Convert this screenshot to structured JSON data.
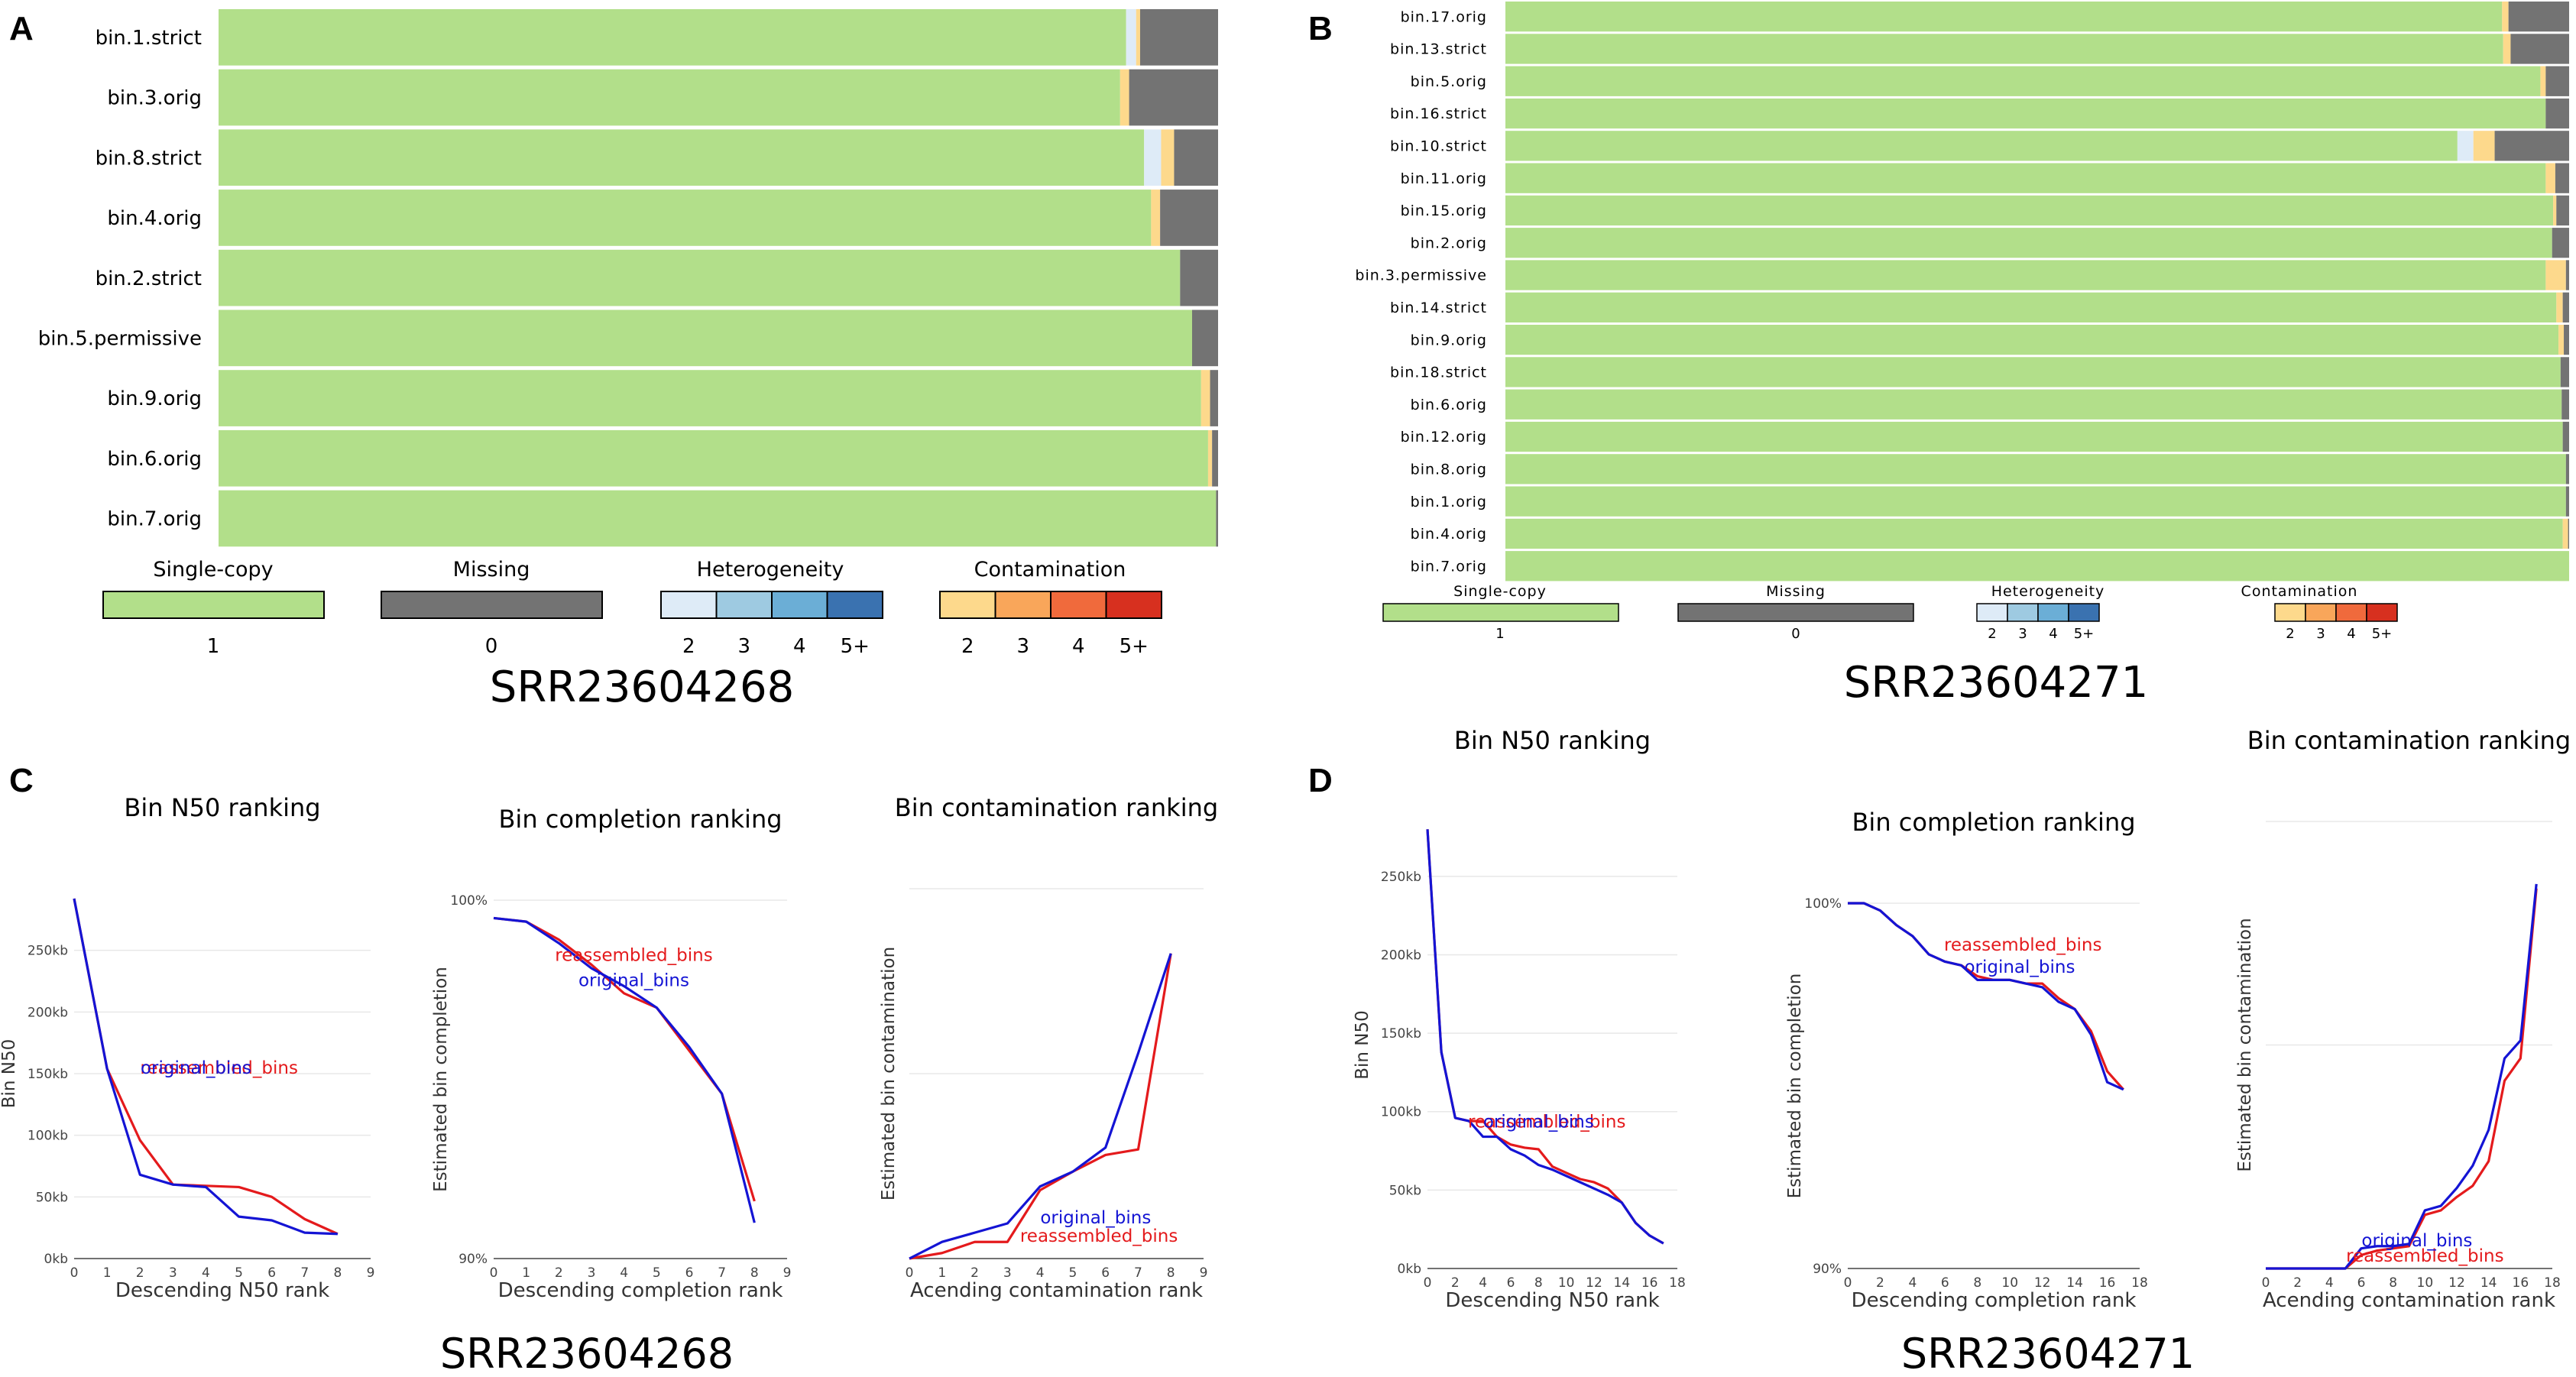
{
  "colors": {
    "single_copy": "#b2df8a",
    "missing": "#737373",
    "heterogeneity": [
      "#deebf7",
      "#9ecae1",
      "#6baed6",
      "#3a72b0"
    ],
    "contamination": [
      "#fdd98c",
      "#f9a65a",
      "#f06a3c",
      "#d7301f"
    ],
    "reassembled": "#e41a1c",
    "original": "#1414d4"
  },
  "legend": {
    "single_copy_title": "Single-copy",
    "single_copy_tick": "1",
    "missing_title": "Missing",
    "missing_tick": "0",
    "heterogeneity_title": "Heterogeneity",
    "heterogeneity_ticks": [
      "2",
      "3",
      "4",
      "5+"
    ],
    "contamination_title": "Contamination",
    "contamination_ticks": [
      "2",
      "3",
      "4",
      "5+"
    ]
  },
  "panels": {
    "A": {
      "letter": "A",
      "sample": "SRR23604268"
    },
    "B": {
      "letter": "B",
      "sample": "SRR23604271"
    },
    "C": {
      "letter": "C",
      "sample": "SRR23604268"
    },
    "D": {
      "letter": "D",
      "sample": "SRR23604271"
    }
  },
  "chart_data": [
    {
      "id": "A",
      "type": "bar",
      "stacked": true,
      "orientation": "horizontal",
      "title": "SRR23604268",
      "categories": [
        "bin.1.strict",
        "bin.3.orig",
        "bin.8.strict",
        "bin.4.orig",
        "bin.2.strict",
        "bin.5.permissive",
        "bin.9.orig",
        "bin.6.orig",
        "bin.7.orig"
      ],
      "series": [
        {
          "name": "Single-copy",
          "values": [
            90.8,
            90.2,
            92.6,
            93.3,
            96.2,
            97.4,
            98.3,
            99.0,
            99.8
          ]
        },
        {
          "name": "Heterogeneity",
          "values": [
            1.0,
            0,
            1.7,
            0,
            0,
            0,
            0,
            0,
            0
          ]
        },
        {
          "name": "Contamination",
          "values": [
            0.4,
            0.9,
            1.3,
            0.9,
            0,
            0,
            0.9,
            0.4,
            0
          ]
        },
        {
          "name": "Missing",
          "values": [
            7.8,
            8.9,
            4.4,
            5.8,
            3.8,
            2.6,
            0.8,
            0.6,
            0.2
          ]
        }
      ],
      "xlim": [
        0,
        100
      ]
    },
    {
      "id": "B",
      "type": "bar",
      "stacked": true,
      "orientation": "horizontal",
      "title": "SRR23604271",
      "categories": [
        "bin.17.orig",
        "bin.13.strict",
        "bin.5.orig",
        "bin.16.strict",
        "bin.10.strict",
        "bin.11.orig",
        "bin.15.orig",
        "bin.2.orig",
        "bin.3.permissive",
        "bin.14.strict",
        "bin.9.orig",
        "bin.18.strict",
        "bin.6.orig",
        "bin.12.orig",
        "bin.8.orig",
        "bin.1.orig",
        "bin.4.orig",
        "bin.7.orig"
      ],
      "series": [
        {
          "name": "Single-copy",
          "values": [
            93.7,
            93.8,
            97.3,
            97.8,
            89.5,
            97.8,
            98.5,
            98.4,
            97.8,
            98.8,
            99.0,
            99.2,
            99.3,
            99.4,
            99.7,
            99.7,
            99.4,
            100
          ]
        },
        {
          "name": "Heterogeneity",
          "values": [
            0,
            0,
            0,
            0,
            1.5,
            0,
            0,
            0,
            0,
            0,
            0,
            0,
            0,
            0,
            0,
            0,
            0,
            0
          ]
        },
        {
          "name": "Contamination",
          "values": [
            0.6,
            0.7,
            0.5,
            0,
            2.0,
            0.9,
            0.3,
            0,
            1.9,
            0.6,
            0.5,
            0,
            0,
            0,
            0,
            0,
            0.5,
            0
          ]
        },
        {
          "name": "Missing",
          "values": [
            5.7,
            5.5,
            2.2,
            2.2,
            7.0,
            1.3,
            1.2,
            1.6,
            0.3,
            0.6,
            0.5,
            0.8,
            0.7,
            0.6,
            0.3,
            0.3,
            0.1,
            0
          ]
        }
      ],
      "xlim": [
        0,
        100
      ]
    },
    {
      "id": "C1",
      "type": "line",
      "title": "Bin N50 ranking",
      "xlabel": "Descending N50 rank",
      "ylabel": "Bin N50",
      "xlim": [
        0,
        9
      ],
      "ylim": [
        0,
        300
      ],
      "xticks": [
        "0",
        "1",
        "2",
        "3",
        "4",
        "5",
        "6",
        "7",
        "8",
        "9"
      ],
      "yticks": [
        "0kb",
        "50kb",
        "100kb",
        "150kb",
        "200kb",
        "250kb"
      ],
      "label_reassembled": "reassembled_bins",
      "label_original": "original_bins",
      "series": [
        {
          "name": "reassembled_bins",
          "x": [
            0,
            1,
            2,
            3,
            4,
            5,
            6,
            7,
            8
          ],
          "y": [
            292,
            154,
            96,
            60,
            59,
            58,
            50,
            32,
            20
          ]
        },
        {
          "name": "original_bins",
          "x": [
            0,
            1,
            2,
            3,
            4,
            5,
            6,
            7,
            8
          ],
          "y": [
            292,
            154,
            68,
            60,
            58,
            34,
            31,
            21,
            20
          ]
        }
      ]
    },
    {
      "id": "C2",
      "type": "line",
      "title": "Bin completion ranking",
      "xlabel": "Descending completion rank",
      "ylabel": "Estimated bin completion",
      "xlim": [
        0,
        9
      ],
      "ylim": [
        90,
        100
      ],
      "xticks": [
        "0",
        "1",
        "2",
        "3",
        "4",
        "5",
        "6",
        "7",
        "8",
        "9"
      ],
      "yticks": [
        "90%",
        "100%"
      ],
      "label_reassembled": "reassembled_bins",
      "label_original": "original_bins",
      "series": [
        {
          "name": "reassembled_bins",
          "x": [
            0,
            1,
            2,
            3,
            4,
            5,
            6,
            7,
            8
          ],
          "y": [
            99.5,
            99.4,
            98.9,
            98.2,
            97.4,
            97.0,
            95.8,
            94.6,
            91.6
          ]
        },
        {
          "name": "original_bins",
          "x": [
            0,
            1,
            2,
            3,
            4,
            5,
            6,
            7,
            8
          ],
          "y": [
            99.5,
            99.4,
            98.8,
            98.1,
            97.6,
            97.0,
            95.9,
            94.6,
            91.0
          ]
        }
      ]
    },
    {
      "id": "C3",
      "type": "line",
      "title": "Bin contamination ranking",
      "xlabel": "Acending contamination rank",
      "ylabel": "Estimated bin contamination",
      "xlim": [
        0,
        9
      ],
      "ylim": [
        0,
        10
      ],
      "xticks": [
        "0",
        "1",
        "2",
        "3",
        "4",
        "5",
        "6",
        "7",
        "8",
        "9"
      ],
      "yticks": [],
      "label_reassembled": "reassembled_bins",
      "label_original": "original_bins",
      "series": [
        {
          "name": "reassembled_bins",
          "x": [
            0,
            1,
            2,
            3,
            4,
            5,
            6,
            7,
            8
          ],
          "y": [
            0,
            0.15,
            0.45,
            0.45,
            1.85,
            2.35,
            2.8,
            2.95,
            8.25
          ]
        },
        {
          "name": "original_bins",
          "x": [
            0,
            1,
            2,
            3,
            4,
            5,
            6,
            7,
            8
          ],
          "y": [
            0,
            0.45,
            0.7,
            0.95,
            1.95,
            2.35,
            3.0,
            5.55,
            8.25
          ]
        }
      ]
    },
    {
      "id": "D1",
      "type": "line",
      "title": "Bin N50 ranking",
      "xlabel": "Descending N50 rank",
      "ylabel": "Bin N50",
      "xlim": [
        0,
        18
      ],
      "ylim": [
        0,
        285
      ],
      "xticks": [
        "0",
        "2",
        "4",
        "6",
        "8",
        "10",
        "12",
        "14",
        "16",
        "18"
      ],
      "yticks": [
        "0kb",
        "50kb",
        "100kb",
        "150kb",
        "200kb",
        "250kb"
      ],
      "label_reassembled": "reassembled_bins",
      "label_original": "original_bins",
      "series": [
        {
          "name": "reassembled_bins",
          "x": [
            0,
            1,
            2,
            3,
            4,
            5,
            6,
            7,
            8,
            9,
            10,
            11,
            12,
            13,
            14,
            15,
            16,
            17
          ],
          "y": [
            280,
            138,
            96,
            94,
            94,
            84,
            79,
            77,
            76,
            65,
            61,
            57,
            55,
            51,
            42,
            29,
            21,
            16
          ]
        },
        {
          "name": "original_bins",
          "x": [
            0,
            1,
            2,
            3,
            4,
            5,
            6,
            7,
            8,
            9,
            10,
            11,
            12,
            13,
            14,
            15,
            16,
            17
          ],
          "y": [
            280,
            138,
            96,
            94,
            84,
            84,
            76,
            72,
            66,
            63,
            59,
            55,
            51,
            47,
            42,
            29,
            21,
            16
          ]
        }
      ]
    },
    {
      "id": "D2",
      "type": "line",
      "title": "Bin completion ranking",
      "xlabel": "Descending completion rank",
      "ylabel": "Estimated bin completion",
      "xlim": [
        0,
        18
      ],
      "ylim": [
        90,
        100
      ],
      "xticks": [
        "0",
        "2",
        "4",
        "6",
        "8",
        "10",
        "12",
        "14",
        "16",
        "18"
      ],
      "yticks": [
        "90%",
        "100%"
      ],
      "label_reassembled": "reassembled_bins",
      "label_original": "original_bins",
      "series": [
        {
          "name": "reassembled_bins",
          "x": [
            0,
            1,
            2,
            3,
            4,
            5,
            6,
            7,
            8,
            9,
            10,
            11,
            12,
            13,
            14,
            15,
            16,
            17
          ],
          "y": [
            100,
            100,
            99.8,
            99.4,
            99.1,
            98.6,
            98.4,
            98.3,
            98.0,
            97.9,
            97.9,
            97.8,
            97.8,
            97.4,
            97.1,
            96.5,
            95.4,
            94.9
          ]
        },
        {
          "name": "original_bins",
          "x": [
            0,
            1,
            2,
            3,
            4,
            5,
            6,
            7,
            8,
            9,
            10,
            11,
            12,
            13,
            14,
            15,
            16,
            17
          ],
          "y": [
            100,
            100,
            99.8,
            99.4,
            99.1,
            98.6,
            98.4,
            98.3,
            97.9,
            97.9,
            97.9,
            97.8,
            97.7,
            97.3,
            97.1,
            96.4,
            95.1,
            94.9
          ]
        }
      ]
    },
    {
      "id": "D3",
      "type": "line",
      "title": "Bin contamination ranking",
      "xlabel": "Acending contamination rank",
      "ylabel": "Estimated bin contamination",
      "xlim": [
        0,
        18
      ],
      "ylim": [
        0,
        10
      ],
      "xticks": [
        "0",
        "2",
        "4",
        "6",
        "8",
        "10",
        "12",
        "14",
        "16",
        "18"
      ],
      "yticks": [],
      "label_reassembled": "reassembled_bins",
      "label_original": "original_bins",
      "series": [
        {
          "name": "reassembled_bins",
          "x": [
            0,
            1,
            2,
            3,
            4,
            5,
            6,
            7,
            8,
            9,
            10,
            11,
            12,
            13,
            14,
            15,
            16,
            17
          ],
          "y": [
            0,
            0,
            0,
            0,
            0,
            0,
            0.3,
            0.4,
            0.45,
            0.5,
            1.2,
            1.3,
            1.6,
            1.85,
            2.4,
            4.2,
            4.7,
            8.5
          ]
        },
        {
          "name": "original_bins",
          "x": [
            0,
            1,
            2,
            3,
            4,
            5,
            6,
            7,
            8,
            9,
            10,
            11,
            12,
            13,
            14,
            15,
            16,
            17
          ],
          "y": [
            0,
            0,
            0,
            0,
            0,
            0,
            0.45,
            0.5,
            0.5,
            0.55,
            1.3,
            1.4,
            1.8,
            2.3,
            3.1,
            4.7,
            5.1,
            8.6
          ]
        }
      ]
    }
  ]
}
